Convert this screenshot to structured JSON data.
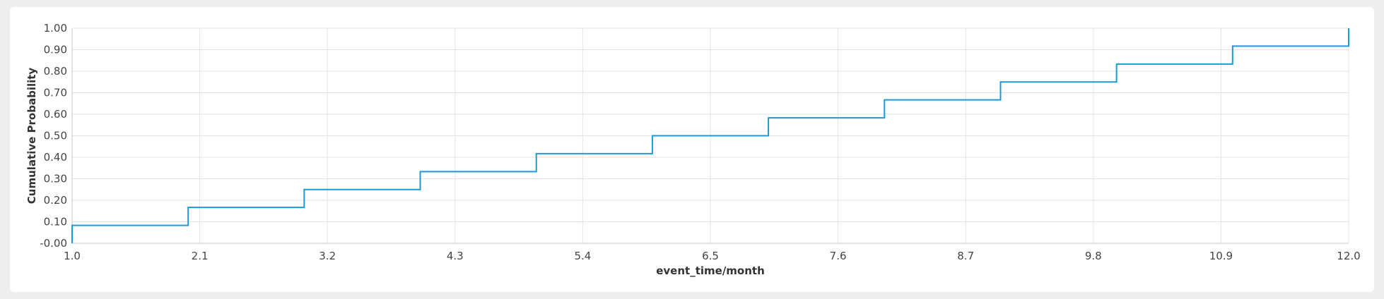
{
  "chart_data": {
    "type": "line",
    "step": true,
    "title": "",
    "xlabel": "event_time/month",
    "ylabel": "Cumulative Probability",
    "xlim": [
      1.0,
      12.0
    ],
    "ylim": [
      0.0,
      1.0
    ],
    "x_ticks": [
      "1.0",
      "2.1",
      "3.2",
      "4.3",
      "5.4",
      "6.5",
      "7.6",
      "8.7",
      "9.8",
      "10.9",
      "12.0"
    ],
    "y_ticks": [
      "-0.00",
      "0.10",
      "0.20",
      "0.30",
      "0.40",
      "0.50",
      "0.60",
      "0.70",
      "0.80",
      "0.90",
      "1.00"
    ],
    "grid": true,
    "line_color": "#1a9ad6",
    "series": [
      {
        "x": [
          1,
          2,
          3,
          4,
          5,
          6,
          7,
          8,
          9,
          10,
          11,
          12
        ],
        "values": [
          0.0833,
          0.1667,
          0.25,
          0.3333,
          0.4167,
          0.5,
          0.5833,
          0.6667,
          0.75,
          0.8333,
          0.9167,
          1.0
        ]
      }
    ]
  }
}
